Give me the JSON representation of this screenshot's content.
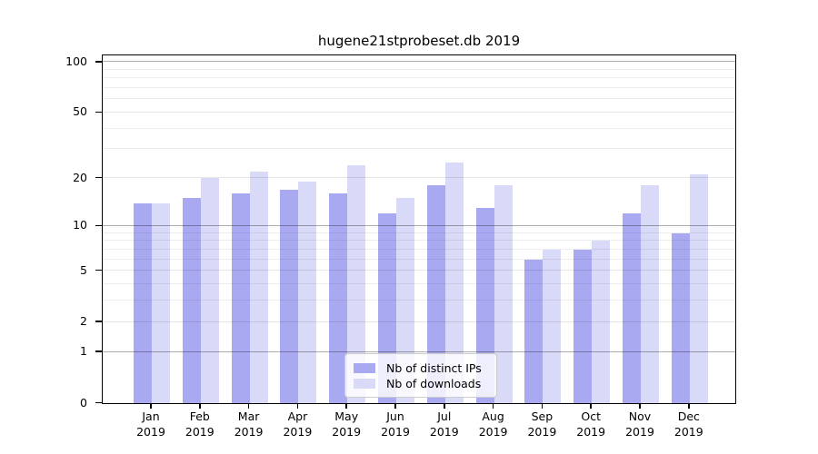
{
  "title": "hugene21stprobeset.db 2019",
  "legend": {
    "items": [
      {
        "label": "Nb of distinct IPs",
        "color": "#a9a9f1"
      },
      {
        "label": "Nb of downloads",
        "color": "#d9d9f8"
      }
    ]
  },
  "chart_data": {
    "type": "bar",
    "title": "hugene21stprobeset.db 2019",
    "categories": [
      "Jan",
      "Feb",
      "Mar",
      "Apr",
      "May",
      "Jun",
      "Jul",
      "Aug",
      "Sep",
      "Oct",
      "Nov",
      "Dec"
    ],
    "x_tick_year": "2019",
    "series": [
      {
        "name": "Nb of distinct IPs",
        "color": "#a9a9f1",
        "values": [
          14,
          15,
          16,
          17,
          16,
          12,
          18,
          13,
          6,
          7,
          12,
          9
        ]
      },
      {
        "name": "Nb of downloads",
        "color": "#d9d9f8",
        "values": [
          14,
          20,
          22,
          19,
          24,
          15,
          25,
          18,
          7,
          8,
          18,
          21
        ]
      }
    ],
    "y_axis": {
      "scale": "log1p",
      "tick_labels": [
        0,
        1,
        2,
        5,
        10,
        20,
        50,
        100
      ],
      "decade_gridlines": [
        1,
        10,
        100
      ],
      "minor_gridlines": [
        3,
        4,
        6,
        7,
        8,
        9,
        30,
        40,
        60,
        70,
        80,
        90
      ]
    },
    "legend_position": "lower-center-right",
    "grid": true
  }
}
